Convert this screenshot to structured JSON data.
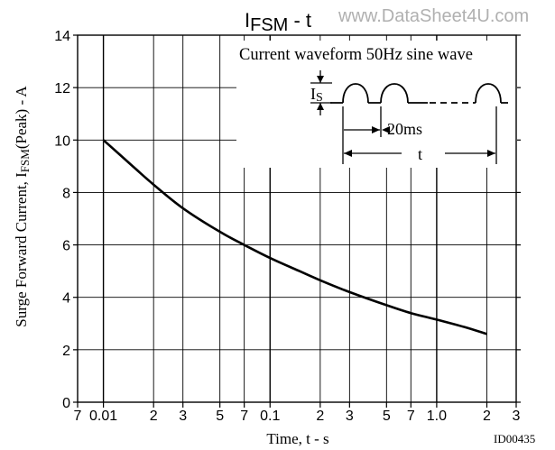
{
  "chart_data": {
    "type": "line",
    "title_main": "I",
    "title_sub": "FSM",
    "title_rest": " - t",
    "watermark": "www.DataSheet4U.com",
    "xlabel": "Time, t  -  s",
    "ylabel_pre": "Surge Forward Current, I",
    "ylabel_sub": "FSM",
    "ylabel_post": "(Peak)  -  A",
    "x_scale": "log",
    "xlim": [
      0.007,
      3
    ],
    "ylim": [
      0,
      14
    ],
    "grid": true,
    "x_ticks": [
      {
        "value": 0.007,
        "label": "7"
      },
      {
        "value": 0.01,
        "label": "0.01"
      },
      {
        "value": 0.02,
        "label": "2"
      },
      {
        "value": 0.03,
        "label": "3"
      },
      {
        "value": 0.05,
        "label": "5"
      },
      {
        "value": 0.07,
        "label": "7"
      },
      {
        "value": 0.1,
        "label": "0.1"
      },
      {
        "value": 0.2,
        "label": "2"
      },
      {
        "value": 0.3,
        "label": "3"
      },
      {
        "value": 0.5,
        "label": "5"
      },
      {
        "value": 0.7,
        "label": "7"
      },
      {
        "value": 1.0,
        "label": "1.0"
      },
      {
        "value": 2,
        "label": "2"
      },
      {
        "value": 3,
        "label": "3"
      }
    ],
    "y_ticks": [
      {
        "value": 0,
        "label": "0"
      },
      {
        "value": 2,
        "label": "2"
      },
      {
        "value": 4,
        "label": "4"
      },
      {
        "value": 6,
        "label": "6"
      },
      {
        "value": 8,
        "label": "8"
      },
      {
        "value": 10,
        "label": "10"
      },
      {
        "value": 12,
        "label": "12"
      },
      {
        "value": 14,
        "label": "14"
      }
    ],
    "series": [
      {
        "x": [
          0.01,
          0.015,
          0.02,
          0.03,
          0.05,
          0.07,
          0.1,
          0.15,
          0.2,
          0.3,
          0.5,
          0.7,
          1.0,
          1.5,
          2.0
        ],
        "y": [
          10.0,
          9.0,
          8.3,
          7.4,
          6.5,
          6.0,
          5.5,
          5.0,
          4.65,
          4.2,
          3.7,
          3.4,
          3.15,
          2.85,
          2.6
        ]
      }
    ],
    "inset": {
      "caption": "Current waveform 50Hz sine wave",
      "amp_label": "I",
      "amp_label_sub": "S",
      "period_label": "20ms",
      "duration_label": "t"
    },
    "id_label": "ID00435"
  }
}
